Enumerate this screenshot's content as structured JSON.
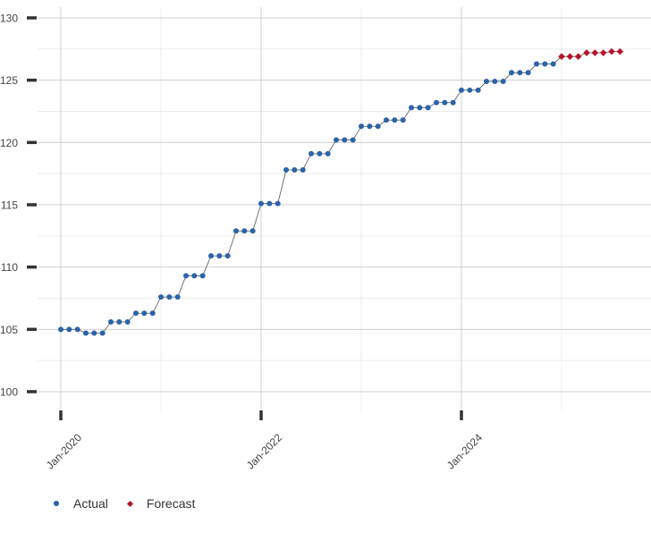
{
  "chart_data": {
    "type": "line",
    "x_dates": [
      "2020-01",
      "2020-02",
      "2020-03",
      "2020-04",
      "2020-05",
      "2020-06",
      "2020-07",
      "2020-08",
      "2020-09",
      "2020-10",
      "2020-11",
      "2020-12",
      "2021-01",
      "2021-02",
      "2021-03",
      "2021-04",
      "2021-05",
      "2021-06",
      "2021-07",
      "2021-08",
      "2021-09",
      "2021-10",
      "2021-11",
      "2021-12",
      "2022-01",
      "2022-02",
      "2022-03",
      "2022-04",
      "2022-05",
      "2022-06",
      "2022-07",
      "2022-08",
      "2022-09",
      "2022-10",
      "2022-11",
      "2022-12",
      "2023-01",
      "2023-02",
      "2023-03",
      "2023-04",
      "2023-05",
      "2023-06",
      "2023-07",
      "2023-08",
      "2023-09",
      "2023-10",
      "2023-11",
      "2023-12",
      "2024-01",
      "2024-02",
      "2024-03",
      "2024-04",
      "2024-05",
      "2024-06",
      "2024-07",
      "2024-08",
      "2024-09",
      "2024-10",
      "2024-11",
      "2024-12"
    ],
    "series": [
      {
        "name": "Actual",
        "color": "#2a64a8",
        "marker": "circle",
        "x": [
          "2020-01",
          "2020-02",
          "2020-03",
          "2020-04",
          "2020-05",
          "2020-06",
          "2020-07",
          "2020-08",
          "2020-09",
          "2020-10",
          "2020-11",
          "2020-12",
          "2021-01",
          "2021-02",
          "2021-03",
          "2021-04",
          "2021-05",
          "2021-06",
          "2021-07",
          "2021-08",
          "2021-09",
          "2021-10",
          "2021-11",
          "2021-12",
          "2022-01",
          "2022-02",
          "2022-03",
          "2022-04",
          "2022-05",
          "2022-06",
          "2022-07",
          "2022-08",
          "2022-09",
          "2022-10",
          "2022-11",
          "2022-12",
          "2023-01",
          "2023-02",
          "2023-03",
          "2023-04",
          "2023-05",
          "2023-06",
          "2023-07",
          "2023-08",
          "2023-09",
          "2023-10",
          "2023-11",
          "2023-12",
          "2024-01",
          "2024-02",
          "2024-03",
          "2024-04",
          "2024-05",
          "2024-06",
          "2024-07",
          "2024-08",
          "2024-09",
          "2024-10",
          "2024-11",
          "2024-12"
        ],
        "values": [
          105.0,
          105.0,
          105.0,
          104.7,
          104.7,
          104.7,
          105.6,
          105.6,
          105.6,
          106.3,
          106.3,
          106.3,
          107.6,
          107.6,
          107.6,
          109.3,
          109.3,
          109.3,
          110.9,
          110.9,
          110.9,
          112.9,
          112.9,
          112.9,
          115.1,
          115.1,
          115.1,
          117.8,
          117.8,
          117.8,
          119.1,
          119.1,
          119.1,
          120.2,
          120.2,
          120.2,
          121.3,
          121.3,
          121.3,
          121.8,
          121.8,
          121.8,
          122.8,
          122.8,
          122.8,
          123.2,
          123.2,
          123.2,
          124.2,
          124.2,
          124.2,
          124.9,
          124.9,
          124.9,
          125.6,
          125.6,
          125.6,
          126.3,
          126.3,
          126.3
        ]
      },
      {
        "name": "Forecast",
        "color": "#b5152b",
        "marker": "diamond",
        "x": [
          "2025-01",
          "2025-02",
          "2025-03",
          "2025-04",
          "2025-05",
          "2025-06",
          "2025-07",
          "2025-08"
        ],
        "values": [
          126.9,
          126.9,
          126.9,
          127.2,
          127.2,
          127.2,
          127.3,
          127.3
        ]
      }
    ],
    "x_ticks": [
      {
        "date": "2020-01",
        "label": "Jan-2020"
      },
      {
        "date": "2022-01",
        "label": "Jan-2022"
      },
      {
        "date": "2024-01",
        "label": "Jan-2024"
      }
    ],
    "ylim": [
      100,
      130
    ],
    "y_ticks": [
      100,
      105,
      110,
      115,
      120,
      125,
      130
    ],
    "grid": true,
    "legend": "bottom-left"
  },
  "legend": {
    "actual_label": "Actual",
    "forecast_label": "Forecast",
    "actual_color": "#2a64a8",
    "forecast_color": "#b5152b"
  }
}
